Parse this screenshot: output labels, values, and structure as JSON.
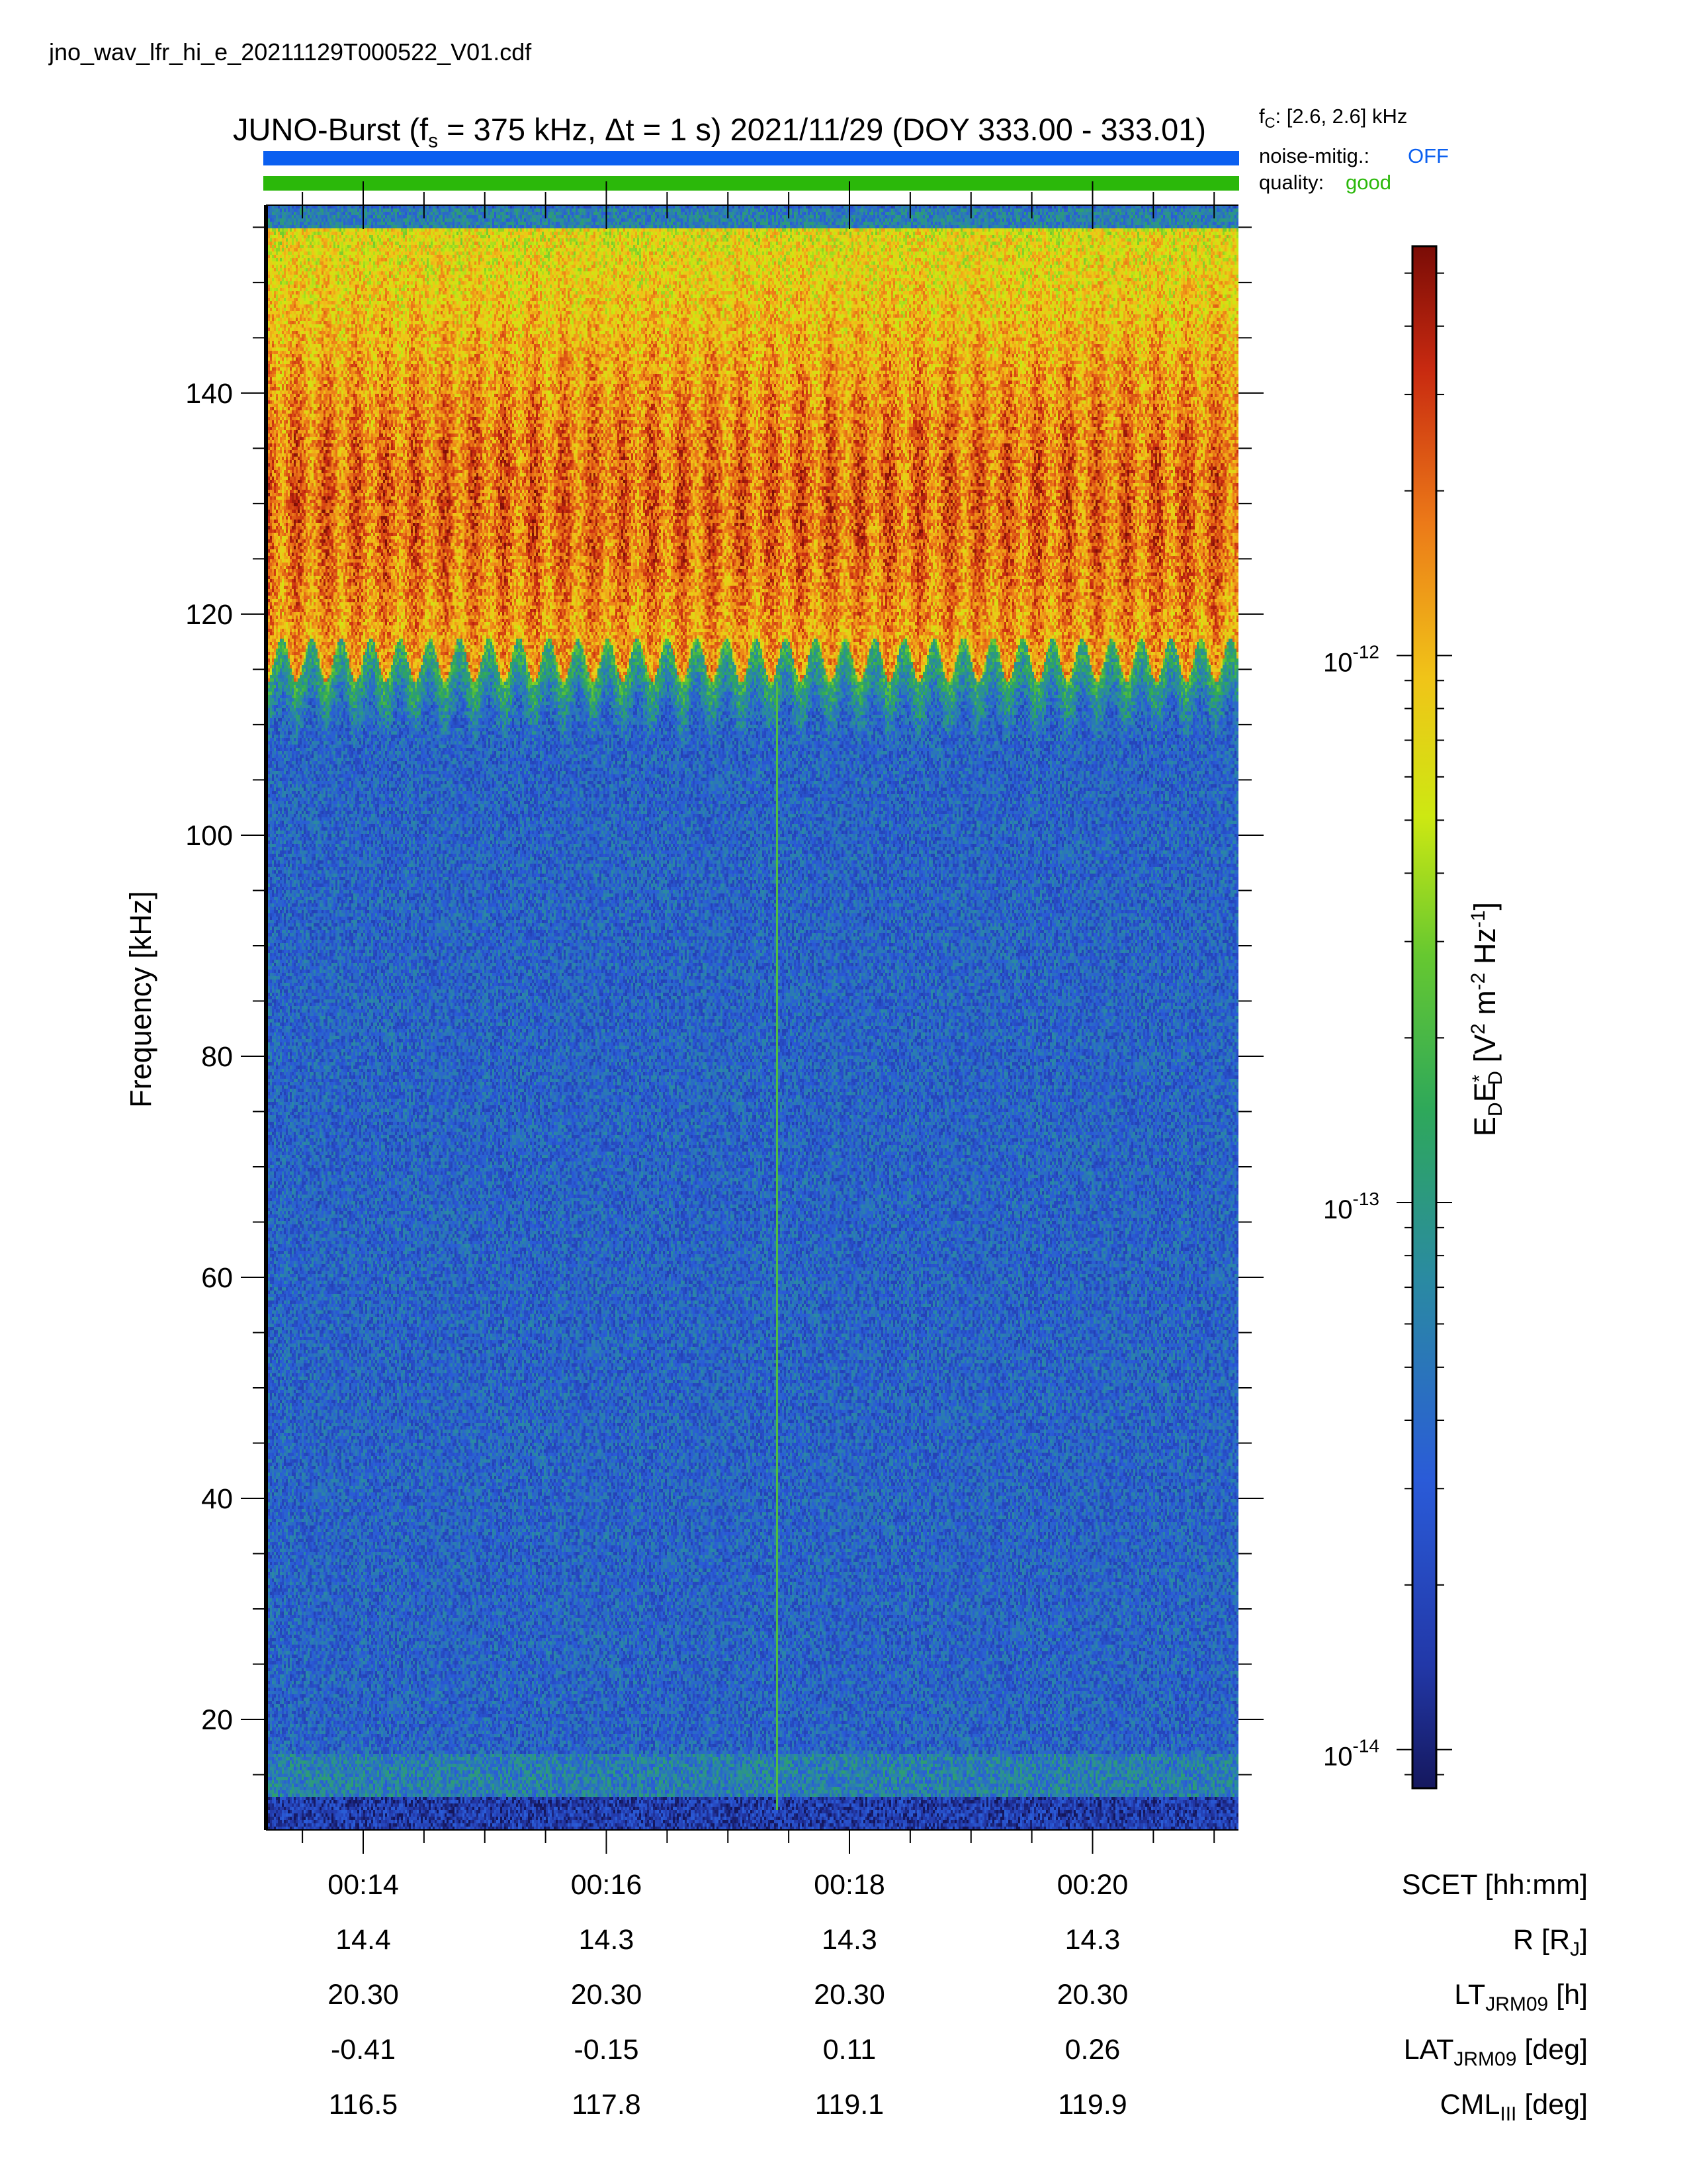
{
  "filename": "jno_wav_lfr_hi_e_20211129T000522_V01.cdf",
  "header": {
    "title_prefix": "JUNO-Burst (f",
    "title_sub": "s",
    "title_rest": " = 375 kHz, Δt = 1 s)  2021/11/29 (DOY 333.00 - 333.01)",
    "fc_prefix": "f",
    "fc_sub": "C",
    "fc_rest": ": [2.6, 2.6] kHz",
    "noise_label": "noise-mitig.:",
    "noise_value": "OFF",
    "quality_label": "quality:",
    "quality_value": "good"
  },
  "colors": {
    "noise_bar": "#0a5ff0",
    "noise_value": "#0a5ff0",
    "quality_bar": "#2bb80a",
    "quality_value": "#2bb80a"
  },
  "chart_data": {
    "type": "heatmap",
    "y_axis": {
      "label": "Frequency [kHz]",
      "range": [
        10,
        157
      ],
      "ticks": [
        20,
        40,
        60,
        80,
        100,
        120,
        140
      ]
    },
    "x_axis": {
      "label": "SCET [hh:mm]",
      "range_minutes": [
        13.2,
        21.2
      ],
      "ticks": [
        "00:14",
        "00:16",
        "00:18",
        "00:20"
      ]
    },
    "ephemeris": [
      {
        "label_main": "R [R",
        "label_sub": "J",
        "label_end": "]",
        "values": [
          "14.4",
          "14.3",
          "14.3",
          "14.3"
        ]
      },
      {
        "label_main": "LT",
        "label_sub": "JRM09",
        "label_end": " [h]",
        "values": [
          "20.30",
          "20.30",
          "20.30",
          "20.30"
        ]
      },
      {
        "label_main": "LAT",
        "label_sub": "JRM09",
        "label_end": " [deg]",
        "values": [
          "-0.41",
          "-0.15",
          "0.11",
          "0.26"
        ]
      },
      {
        "label_main": "CML",
        "label_sub": "III",
        "label_end": " [deg]",
        "values": [
          "116.5",
          "117.8",
          "119.1",
          "119.9"
        ]
      }
    ],
    "colorbar": {
      "scale": "log",
      "range": [
        8.5e-15,
        5.6e-12
      ],
      "ticks": [
        {
          "base": "10",
          "exp": "-14",
          "value": 1e-14
        },
        {
          "base": "10",
          "exp": "-13",
          "value": 1e-13
        },
        {
          "base": "10",
          "exp": "-12",
          "value": 1e-12
        }
      ],
      "title": "E_D E_D* [V^2 m^-2 Hz^-1]"
    },
    "features": {
      "emission_band_khz": [
        114,
        155
      ],
      "emission_peak_khz": 130,
      "vertical_line_minute": 17.4
    }
  }
}
